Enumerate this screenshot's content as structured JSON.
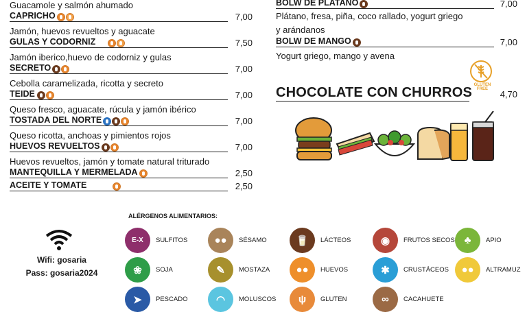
{
  "left_column": {
    "top_desc": "Guacamole y salmón ahumado",
    "items": [
      {
        "name": "CAPRICHO",
        "price": "7,00",
        "desc": "Jamón, huevos revueltos y aguacate",
        "icons": [
          "gluten-icon",
          "milk-icon"
        ]
      },
      {
        "name": "GULAS Y CODORNIZ",
        "price": "7,50",
        "desc": "Jamón iberico,huevo de codorniz y gulas",
        "icons": [
          "gluten-icon",
          "egg-icon"
        ]
      },
      {
        "name": "SECRETO",
        "price": "7,00",
        "desc": "Cebolla caramelizada, ricotta y secreto",
        "icons": [
          "milk-icon",
          "gluten-icon"
        ]
      },
      {
        "name": "TEIDE",
        "price": "7,00",
        "desc": "Queso fresco, aguacate, rúcula y jamón ibérico",
        "icons": [
          "milk-icon",
          "gluten-icon"
        ]
      },
      {
        "name": "TOSTADA DEL NORTE",
        "price": "7,00",
        "desc": "Queso ricotta, anchoas y pimientos rojos",
        "icons": [
          "fish-icon",
          "milk-icon",
          "gluten-icon"
        ]
      },
      {
        "name": "HUEVOS REVUELTOS",
        "price": "7,00",
        "desc": "Huevos revueltos, jamón y tomate natural triturado",
        "icons": [
          "milk-icon",
          "gluten-icon"
        ]
      },
      {
        "name": "MANTEQUILLA Y MERMELADA",
        "price": "2,50",
        "desc": "",
        "icons": [
          "gluten-icon"
        ]
      },
      {
        "name": "ACEITE Y TOMATE",
        "price": "2,50",
        "desc": "",
        "icons": [
          "gluten-icon"
        ]
      }
    ]
  },
  "right_column": {
    "items": [
      {
        "name": "BOLW DE PLATANO",
        "price": "7,00",
        "desc": "Plátano, fresa, piña, coco rallado, yogurt griego",
        "desc2": "y arándanos",
        "icons": [
          "milk-icon"
        ]
      },
      {
        "name": "BOLW DE MANGO",
        "price": "7,00",
        "desc": "Yogurt griego, mango y avena",
        "icons": [
          "milk-icon"
        ]
      }
    ],
    "feature": {
      "name": "CHOCOLATE CON CHURROS",
      "price": "4,70",
      "badge": "GLUTEN FREE"
    }
  },
  "allergens": {
    "title": "ALÉRGENOS ALIMENTARIOS:",
    "list": [
      {
        "label": "SULFITOS",
        "color": "#8e2f6b",
        "icon": "sulfites-icon",
        "glyph": "E-X"
      },
      {
        "label": "SÉSAMO",
        "color": "#a9845a",
        "icon": "sesame-icon",
        "glyph": "●●"
      },
      {
        "label": "LÁCTEOS",
        "color": "#6b3a1f",
        "icon": "milk-icon",
        "glyph": "🥛"
      },
      {
        "label": "FRUTOS SECOS",
        "color": "#b5473a",
        "icon": "nuts-icon",
        "glyph": "◉"
      },
      {
        "label": "APIO",
        "color": "#7bb63a",
        "icon": "celery-icon",
        "glyph": "♣"
      },
      {
        "label": "SOJA",
        "color": "#2e9d48",
        "icon": "soy-icon",
        "glyph": "❀"
      },
      {
        "label": "MOSTAZA",
        "color": "#a7902d",
        "icon": "mustard-icon",
        "glyph": "✎"
      },
      {
        "label": "HUEVOS",
        "color": "#ee8f2b",
        "icon": "egg-icon",
        "glyph": "●●"
      },
      {
        "label": "CRUSTÁCEOS",
        "color": "#2a9ed6",
        "icon": "crustacean-icon",
        "glyph": "✱"
      },
      {
        "label": "ALTRAMUZ",
        "color": "#f0c93a",
        "icon": "lupin-icon",
        "glyph": "●●"
      },
      {
        "label": "PESCADO",
        "color": "#2a5aa6",
        "icon": "fish-icon",
        "glyph": "➤"
      },
      {
        "label": "MOLUSCOS",
        "color": "#5bc5e0",
        "icon": "mollusc-icon",
        "glyph": "◠"
      },
      {
        "label": "GLUTEN",
        "color": "#e88a3a",
        "icon": "gluten-icon",
        "glyph": "ψ"
      },
      {
        "label": "CACAHUETE",
        "color": "#9b6a45",
        "icon": "peanut-icon",
        "glyph": "∞"
      }
    ]
  },
  "wifi": {
    "network": "Wifi: gosaria",
    "password": "Pass: gosaria2024"
  }
}
